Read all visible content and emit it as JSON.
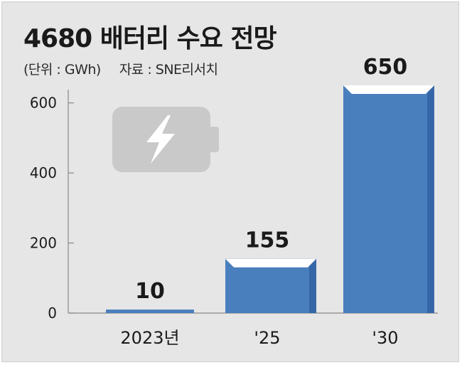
{
  "title": "4680 배터리 수요 전망",
  "unit_note": "(단위 : GWh)",
  "source_note": "자료 : SNE리서치",
  "icon": "battery-charging-icon",
  "colors": {
    "background": "#e6e6e6",
    "bar_front": "#4a7fbe",
    "bar_side": "#3567a8",
    "bar_top": "#ffffff",
    "axis": "#888888",
    "icon": "#c9c9c9"
  },
  "chart_data": {
    "type": "bar",
    "categories": [
      "2023년",
      "'25",
      "'30"
    ],
    "values": [
      10,
      155,
      650
    ],
    "data_labels": [
      "10",
      "155",
      "650"
    ],
    "title": "4680 배터리 수요 전망",
    "ylabel": "",
    "xlabel": "",
    "ylim": [
      0,
      650
    ],
    "yticks": [
      0,
      200,
      400,
      600
    ],
    "ytick_labels": [
      "0",
      "200",
      "400",
      "600"
    ],
    "grid": false,
    "legend": "none"
  }
}
